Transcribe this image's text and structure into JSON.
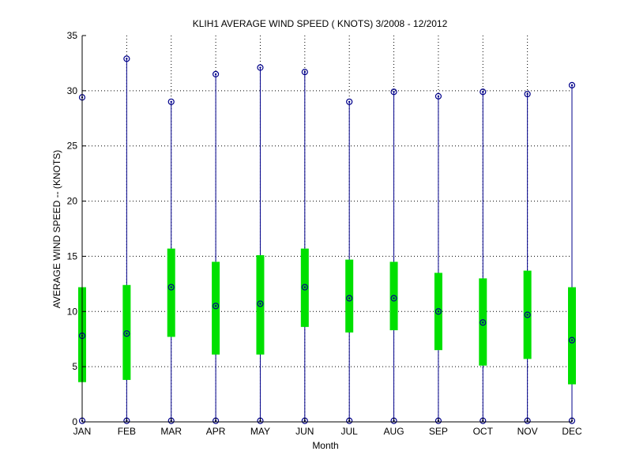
{
  "chart_data": {
    "type": "box",
    "title": "KLIH1  AVERAGE WIND SPEED ( KNOTS) 3/2008 - 12/2012",
    "xlabel": "Month",
    "ylabel": "AVERAGE WIND SPEED -- (KNOTS)",
    "ylim": [
      0,
      35
    ],
    "yticks": [
      0,
      5,
      10,
      15,
      20,
      25,
      30,
      35
    ],
    "grid": true,
    "categories": [
      "JAN",
      "FEB",
      "MAR",
      "APR",
      "MAY",
      "JUN",
      "JUL",
      "AUG",
      "SEP",
      "OCT",
      "NOV",
      "DEC"
    ],
    "series": [
      {
        "min": [
          0.1,
          0.1,
          0.1,
          0.1,
          0.1,
          0.1,
          0.1,
          0.1,
          0.1,
          0.1,
          0.1,
          0.1
        ],
        "q1": [
          3.6,
          3.8,
          7.7,
          6.1,
          6.1,
          8.6,
          8.1,
          8.3,
          6.5,
          5.1,
          5.7,
          3.4
        ],
        "median": [
          7.8,
          8.0,
          12.2,
          10.5,
          10.7,
          12.2,
          11.2,
          11.2,
          10.0,
          9.0,
          9.7,
          7.4
        ],
        "q3": [
          12.2,
          12.4,
          15.7,
          14.5,
          15.1,
          15.7,
          14.7,
          14.5,
          13.5,
          13.0,
          13.7,
          12.2
        ],
        "max": [
          29.4,
          32.9,
          29.0,
          31.5,
          32.1,
          31.7,
          29.0,
          29.9,
          29.5,
          29.9,
          29.7,
          30.5
        ]
      }
    ],
    "colors": {
      "box": "#00e000",
      "whisker": "#00008b",
      "marker": "#00008b",
      "grid": "#000000",
      "axis": "#000000"
    }
  }
}
